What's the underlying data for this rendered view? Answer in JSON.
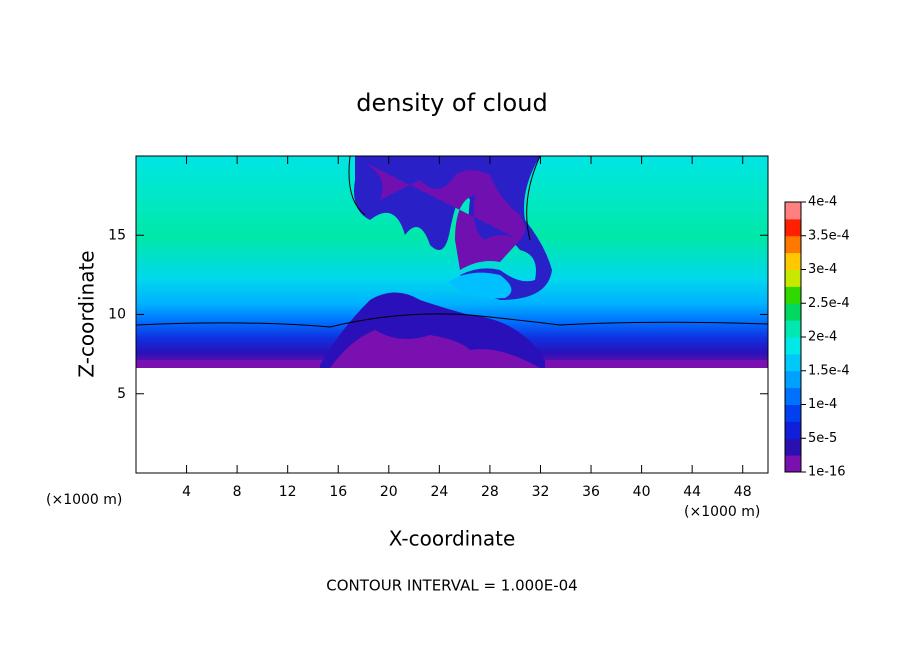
{
  "chart_data": {
    "type": "contour",
    "title": "density of cloud",
    "x_label": "X-coordinate",
    "y_label": "Z-coordinate",
    "x_unit": "(×1000 m)",
    "y_unit": "(×1000 m)",
    "annotation": "CONTOUR INTERVAL = 1.000E-04",
    "xlim": [
      0,
      50
    ],
    "xticks": [
      4,
      8,
      12,
      16,
      20,
      24,
      28,
      32,
      36,
      40,
      44,
      48
    ],
    "ylim": [
      0,
      20
    ],
    "yticks": [
      5,
      10,
      15
    ],
    "colorbar": {
      "lim": [
        1e-16,
        0.0004
      ],
      "ticks": [
        {
          "value": 1e-16,
          "label": "1e-16"
        },
        {
          "value": 5e-05,
          "label": "5e-5"
        },
        {
          "value": 0.0001,
          "label": "1e-4"
        },
        {
          "value": 0.00015,
          "label": "1.5e-4"
        },
        {
          "value": 0.0002,
          "label": "2e-4"
        },
        {
          "value": 0.00025,
          "label": "2.5e-4"
        },
        {
          "value": 0.0003,
          "label": "3e-4"
        },
        {
          "value": 0.00035,
          "label": "3.5e-4"
        },
        {
          "value": 0.0004,
          "label": "4e-4"
        }
      ],
      "colors": [
        "#7a10b0",
        "#2a10b0",
        "#1020d8",
        "#0040f0",
        "#0070ff",
        "#00a0ff",
        "#00c8f8",
        "#00e8e8",
        "#00e8b0",
        "#00d860",
        "#30d800",
        "#c8e800",
        "#ffc800",
        "#ff7800",
        "#ff2000",
        "#ff8080"
      ]
    }
  }
}
